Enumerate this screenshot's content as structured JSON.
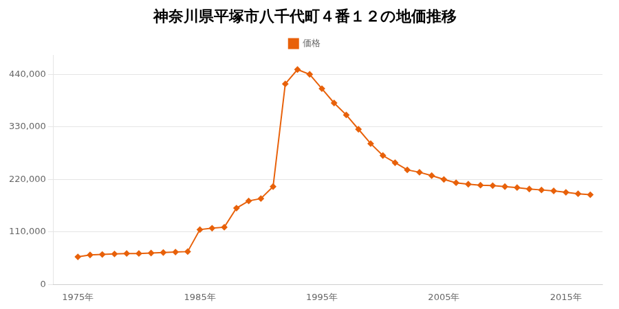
{
  "chart_data": {
    "type": "line",
    "title": "神奈川県平塚市八千代町４番１２の地価推移",
    "x": [
      1975,
      1976,
      1977,
      1978,
      1979,
      1980,
      1981,
      1982,
      1983,
      1984,
      1985,
      1986,
      1987,
      1988,
      1989,
      1990,
      1991,
      1992,
      1993,
      1994,
      1995,
      1996,
      1997,
      1998,
      1999,
      2000,
      2001,
      2002,
      2003,
      2004,
      2005,
      2006,
      2007,
      2008,
      2009,
      2010,
      2011,
      2012,
      2013,
      2014,
      2015,
      2016,
      2017
    ],
    "series": [
      {
        "name": "価格",
        "color": "#e8610a",
        "marker": "diamond",
        "values": [
          58000,
          62000,
          63000,
          64000,
          65000,
          65000,
          66000,
          67000,
          68000,
          69000,
          115000,
          118000,
          120000,
          160000,
          175000,
          180000,
          205000,
          420000,
          450000,
          440000,
          410000,
          380000,
          355000,
          325000,
          295000,
          270000,
          255000,
          240000,
          235000,
          228000,
          220000,
          213000,
          210000,
          208000,
          207000,
          205000,
          203000,
          200000,
          198000,
          196000,
          193000,
          190000,
          188000
        ]
      }
    ],
    "xlim": [
      1973,
      2018
    ],
    "xticks": [
      {
        "value": 1975,
        "label": "1975年"
      },
      {
        "value": 1985,
        "label": "1985年"
      },
      {
        "value": 1995,
        "label": "1995年"
      },
      {
        "value": 2005,
        "label": "2005年"
      },
      {
        "value": 2015,
        "label": "2015年"
      }
    ],
    "ylim": [
      0,
      480000
    ],
    "yticks": [
      0,
      {
        "value": 110000,
        "label": "110,000"
      },
      {
        "value": 220000,
        "label": "220,000"
      },
      {
        "value": 330000,
        "label": "330,000"
      },
      {
        "value": 440000,
        "label": "440,000"
      }
    ],
    "grid": "y",
    "legend": "top"
  }
}
